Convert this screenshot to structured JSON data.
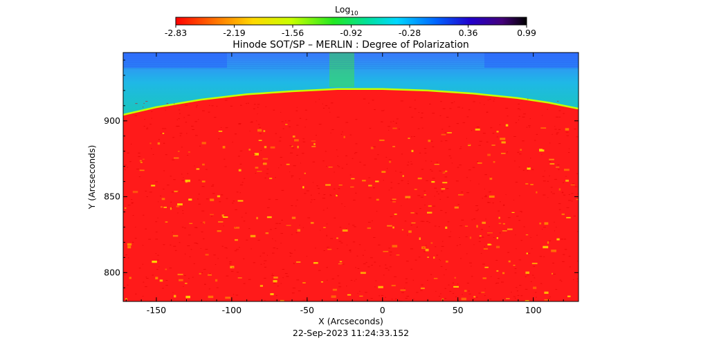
{
  "colorbar": {
    "label": "Log",
    "label_sub": "10",
    "ticks": [
      "-2.83",
      "-2.19",
      "-1.56",
      "-0.92",
      "-0.28",
      "0.36",
      "0.99"
    ]
  },
  "chart_data": {
    "type": "heatmap",
    "title": "Hinode SOT/SP – MERLIN : Degree of Polarization",
    "xlabel": "X (Arcseconds)",
    "ylabel": "Y (Arcseconds)",
    "xlim": [
      -172,
      130
    ],
    "ylim": [
      781,
      945
    ],
    "x_ticks": [
      -150,
      -100,
      -50,
      0,
      50,
      100
    ],
    "y_ticks": [
      800,
      850,
      900
    ],
    "x_tick_labels": [
      "-150",
      "-100",
      "-50",
      "0",
      "50",
      "100"
    ],
    "y_tick_labels": [
      "800",
      "850",
      "900"
    ],
    "color_scale": "log10",
    "clim": [
      -2.83,
      0.99
    ],
    "limb_y_at_x": [
      [
        -172,
        904
      ],
      [
        -150,
        909
      ],
      [
        -120,
        914
      ],
      [
        -90,
        917.5
      ],
      [
        -60,
        919.5
      ],
      [
        -30,
        921
      ],
      [
        0,
        921
      ],
      [
        30,
        920
      ],
      [
        60,
        918
      ],
      [
        90,
        915
      ],
      [
        110,
        912
      ],
      [
        130,
        908
      ]
    ],
    "disk_value": -2.83,
    "offlimb_value": -0.92
  },
  "colors": {
    "disk": "#ff1a1a",
    "offlimb": "#22e822",
    "upper": "#19c9c0",
    "top_band": "#2a66ff",
    "limb_edge": "#c8ff00",
    "speckle": "#ffd400"
  },
  "timestamp": "22-Sep-2023 11:24:33.152"
}
